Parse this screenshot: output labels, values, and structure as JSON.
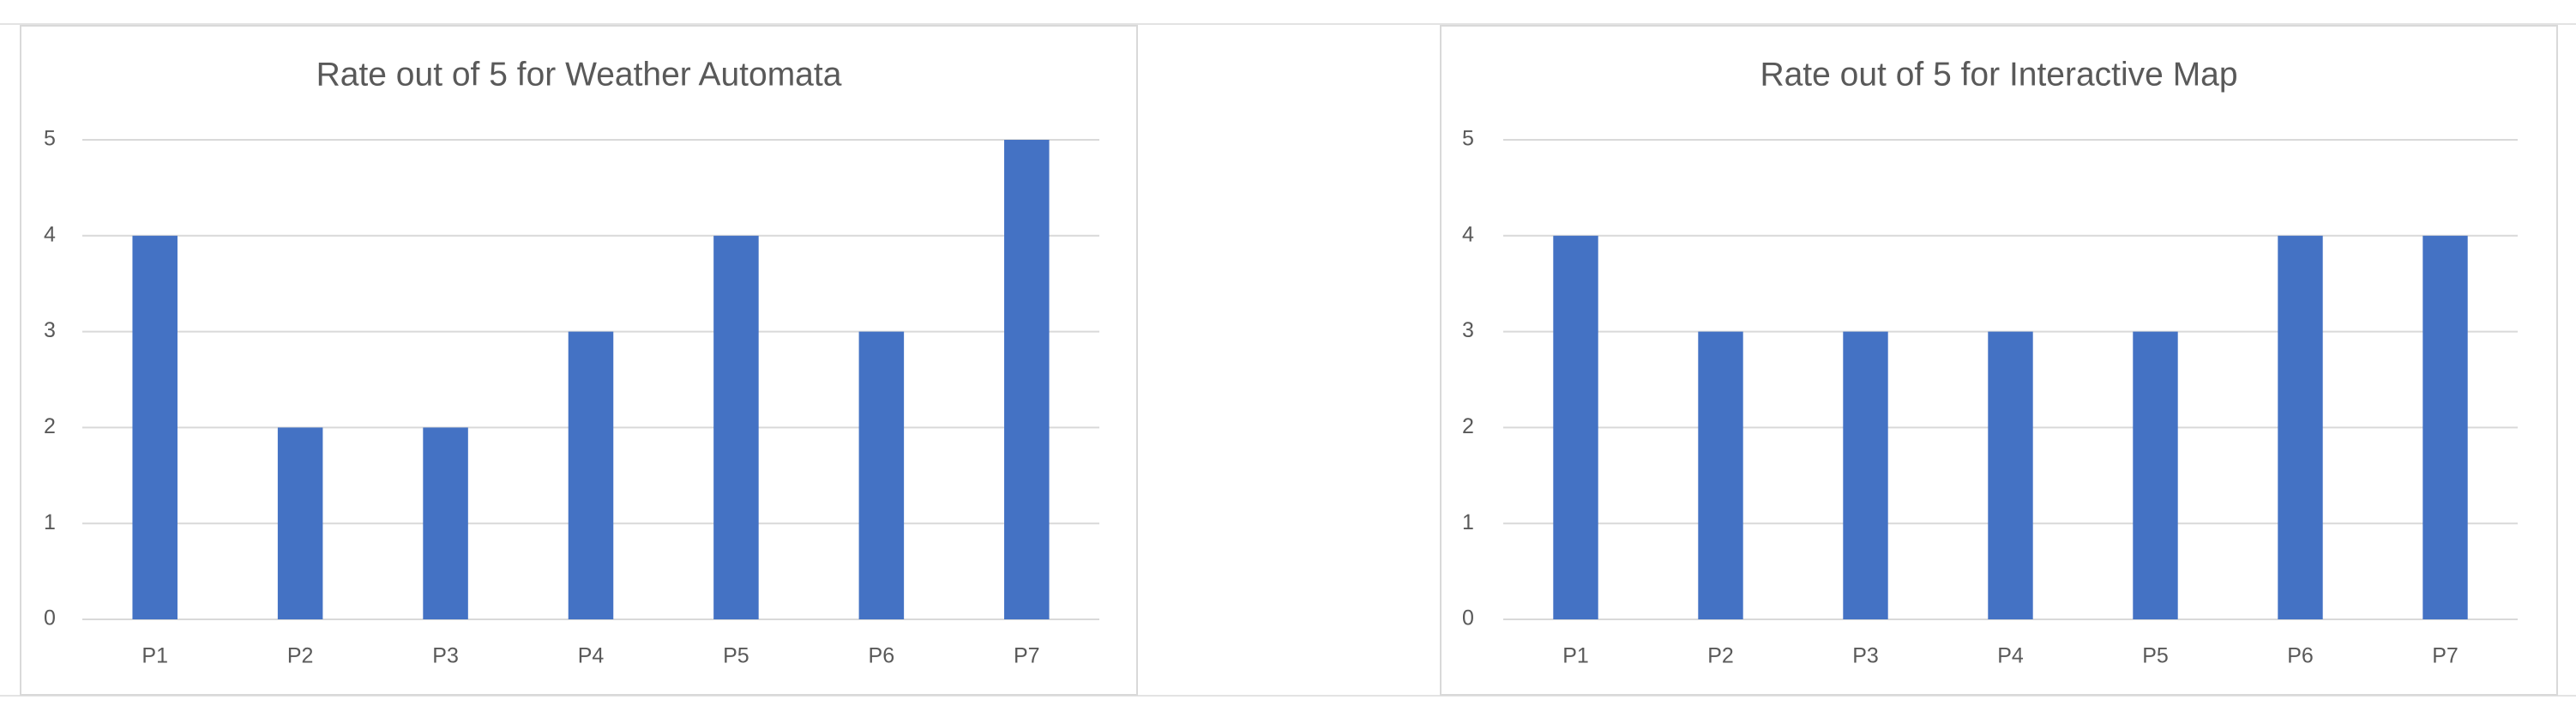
{
  "chart_data": [
    {
      "type": "bar",
      "title": "Rate out of 5 for Weather Automata",
      "categories": [
        "P1",
        "P2",
        "P3",
        "P4",
        "P5",
        "P6",
        "P7"
      ],
      "values": [
        4,
        2,
        2,
        3,
        4,
        3,
        5
      ],
      "color": "#4472c4",
      "ylim": [
        0,
        5
      ],
      "yticks": [
        0,
        1,
        2,
        3,
        4,
        5
      ],
      "grid": true
    },
    {
      "type": "bar",
      "title": "Rate out of 5 for Interactive Map",
      "categories": [
        "P1",
        "P2",
        "P3",
        "P4",
        "P5",
        "P6",
        "P7"
      ],
      "values": [
        4,
        3,
        3,
        3,
        3,
        4,
        4
      ],
      "color": "#4472c4",
      "ylim": [
        0,
        5
      ],
      "yticks": [
        0,
        1,
        2,
        3,
        4,
        5
      ],
      "grid": true
    }
  ]
}
